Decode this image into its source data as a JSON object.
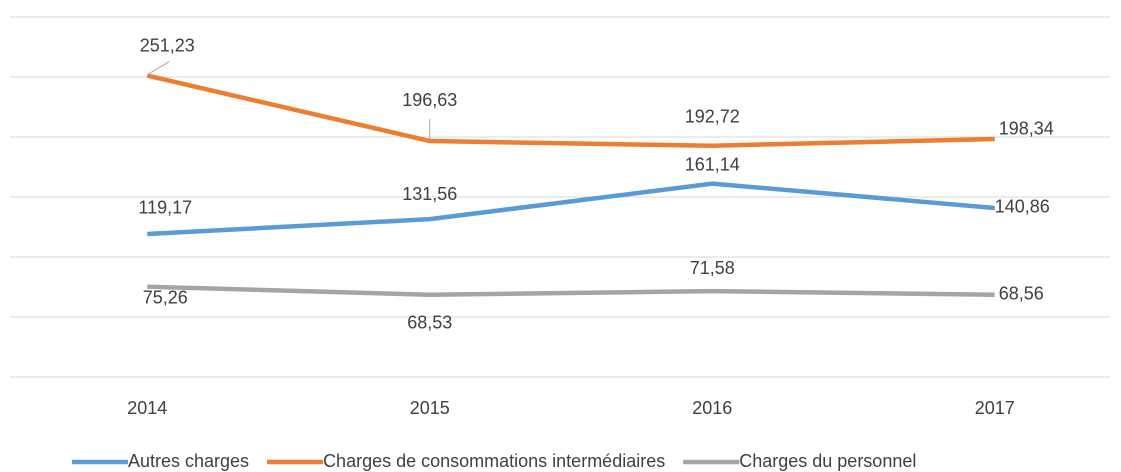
{
  "chart_data": {
    "type": "line",
    "categories": [
      "2014",
      "2015",
      "2016",
      "2017"
    ],
    "series": [
      {
        "name": "Autres charges",
        "color": "#5b9bd5",
        "values": [
          119.17,
          131.56,
          161.14,
          140.86
        ],
        "value_labels": [
          "119,17",
          "131,56",
          "161,14",
          "140,86"
        ]
      },
      {
        "name": "Charges de consommations intermédiaires",
        "color": "#ed7d31",
        "values": [
          251.23,
          196.63,
          192.72,
          198.34
        ],
        "value_labels": [
          "251,23",
          "196,63",
          "192,72",
          "198,34"
        ]
      },
      {
        "name": "Charges du personnel",
        "color": "#a5a5a5",
        "values": [
          75.26,
          68.53,
          71.58,
          68.56
        ],
        "value_labels": [
          "75,26",
          "68,53",
          "71,58",
          "68,56"
        ]
      }
    ],
    "ylim": [
      0,
      300
    ],
    "yticks": [
      0,
      50,
      100,
      150,
      200,
      250,
      300
    ],
    "grid": true,
    "legend": "bottom"
  }
}
